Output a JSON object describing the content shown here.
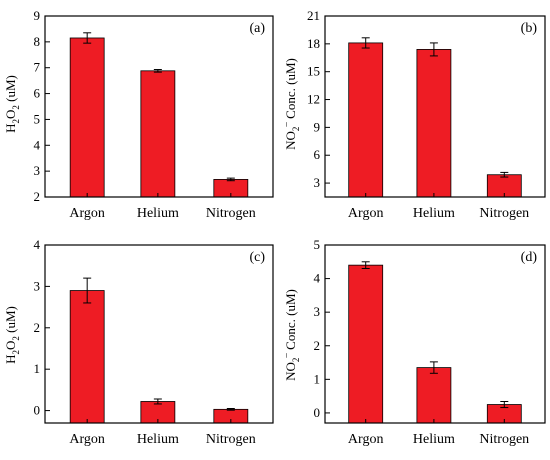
{
  "colors": {
    "bar": "#ee1c24",
    "axis": "#000000"
  },
  "chart_data": [
    {
      "type": "bar",
      "panel": "(a)",
      "categories": [
        "Argon",
        "Helium",
        "Nitrogen"
      ],
      "values": [
        8.15,
        6.88,
        2.68
      ],
      "errors": [
        0.2,
        0.05,
        0.05
      ],
      "ylabel_parts": [
        [
          "H",
          ""
        ],
        [
          "2",
          "sub"
        ],
        [
          "O",
          ""
        ],
        [
          "2",
          "sub"
        ],
        [
          " (uM)",
          ""
        ]
      ],
      "ylim": [
        2,
        9
      ],
      "yticks": [
        2,
        3,
        4,
        5,
        6,
        7,
        8,
        9
      ],
      "legend": "none",
      "grid": false
    },
    {
      "type": "bar",
      "panel": "(b)",
      "categories": [
        "Argon",
        "Helium",
        "Nitrogen"
      ],
      "values": [
        18.1,
        17.4,
        3.9
      ],
      "errors": [
        0.55,
        0.7,
        0.25
      ],
      "ylabel_parts": [
        [
          "NO",
          ""
        ],
        [
          "2",
          "sub"
        ],
        [
          "–",
          "sup"
        ],
        [
          " Conc. (uM)",
          ""
        ]
      ],
      "ylim": [
        1.5,
        21
      ],
      "yticks": [
        3,
        6,
        9,
        12,
        15,
        18,
        21
      ],
      "legend": "none",
      "grid": false
    },
    {
      "type": "bar",
      "panel": "(c)",
      "categories": [
        "Argon",
        "Helium",
        "Nitrogen"
      ],
      "values": [
        2.9,
        0.22,
        0.03
      ],
      "errors": [
        0.3,
        0.06,
        0.02
      ],
      "ylabel_parts": [
        [
          "H",
          ""
        ],
        [
          "2",
          "sub"
        ],
        [
          "O",
          ""
        ],
        [
          "2",
          "sub"
        ],
        [
          " (uM)",
          ""
        ]
      ],
      "ylim": [
        -0.3,
        4
      ],
      "yticks": [
        0,
        1,
        2,
        3,
        4
      ],
      "legend": "none",
      "grid": false
    },
    {
      "type": "bar",
      "panel": "(d)",
      "categories": [
        "Argon",
        "Helium",
        "Nitrogen"
      ],
      "values": [
        4.4,
        1.35,
        0.25
      ],
      "errors": [
        0.1,
        0.17,
        0.09
      ],
      "ylabel_parts": [
        [
          "NO",
          ""
        ],
        [
          "2",
          "sub"
        ],
        [
          "–",
          "sup"
        ],
        [
          " Conc. (uM)",
          ""
        ]
      ],
      "ylim": [
        -0.3,
        5
      ],
      "yticks": [
        0,
        1,
        2,
        3,
        4,
        5
      ],
      "legend": "none",
      "grid": false
    }
  ]
}
